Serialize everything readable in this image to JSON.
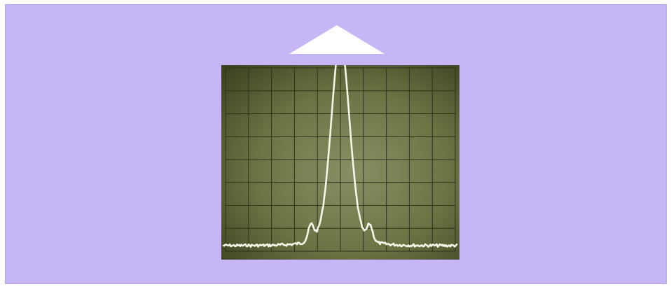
{
  "colors": {
    "background": "#ffffff",
    "panel": "#c6b6f6",
    "panel_border": "#b7a7ea",
    "marker": "#ffffff",
    "screen_dark": "#3a4220",
    "screen_mid": "#6b7344",
    "screen_light": "#8a8f63",
    "graticule": "#2d331a",
    "trace": "#f4f6e8"
  },
  "icons": {
    "marker": "triangle-up-icon"
  }
}
